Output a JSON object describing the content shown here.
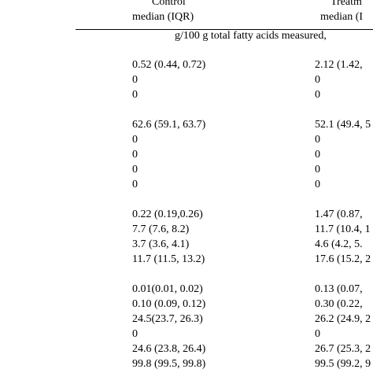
{
  "header": {
    "control_label": "Control",
    "control_stat": "median (IQR)",
    "treatment_label": "Treatm",
    "treatment_stat": "median (I",
    "units": "g/100 g total fatty acids measured,"
  },
  "table": {
    "groups": [
      {
        "rows": [
          {
            "control": "0.52 (0.44, 0.72)",
            "treatment": "2.12 (1.42,"
          },
          {
            "control": "0",
            "treatment": "0"
          },
          {
            "control": "0",
            "treatment": "0"
          }
        ]
      },
      {
        "rows": [
          {
            "control": "62.6 (59.1, 63.7)",
            "treatment": "52.1 (49.4, 5"
          },
          {
            "control": "0",
            "treatment": "0"
          },
          {
            "control": "0",
            "treatment": "0"
          },
          {
            "control": "0",
            "treatment": "0"
          },
          {
            "control": "0",
            "treatment": "0"
          }
        ]
      },
      {
        "rows": [
          {
            "control": "0.22 (0.19,0.26)",
            "treatment": "1.47 (0.87,"
          },
          {
            "control": "7.7 (7.6, 8.2)",
            "treatment": "11.7 (10.4, 1"
          },
          {
            "control": "3.7 (3.6, 4.1)",
            "treatment": "4.6 (4.2, 5."
          },
          {
            "control": "11.7 (11.5, 13.2)",
            "treatment": "17.6 (15.2, 2"
          }
        ]
      },
      {
        "rows": [
          {
            "control": "0.01(0.01, 0.02)",
            "treatment": "0.13 (0.07,"
          },
          {
            "control": "0.10 (0.09, 0.12)",
            "treatment": "0.30 (0.22,"
          },
          {
            "control": "24.5(23.7, 26.3)",
            "treatment": "26.2 (24.9, 2"
          },
          {
            "control": "0",
            "treatment": "0"
          },
          {
            "control": "24.6 (23.8, 26.4)",
            "treatment": "26.7 (25.3, 2"
          },
          {
            "control": "99.8 (99.5, 99.8)",
            "treatment": "99.5 (99.2, 9"
          }
        ]
      }
    ]
  }
}
